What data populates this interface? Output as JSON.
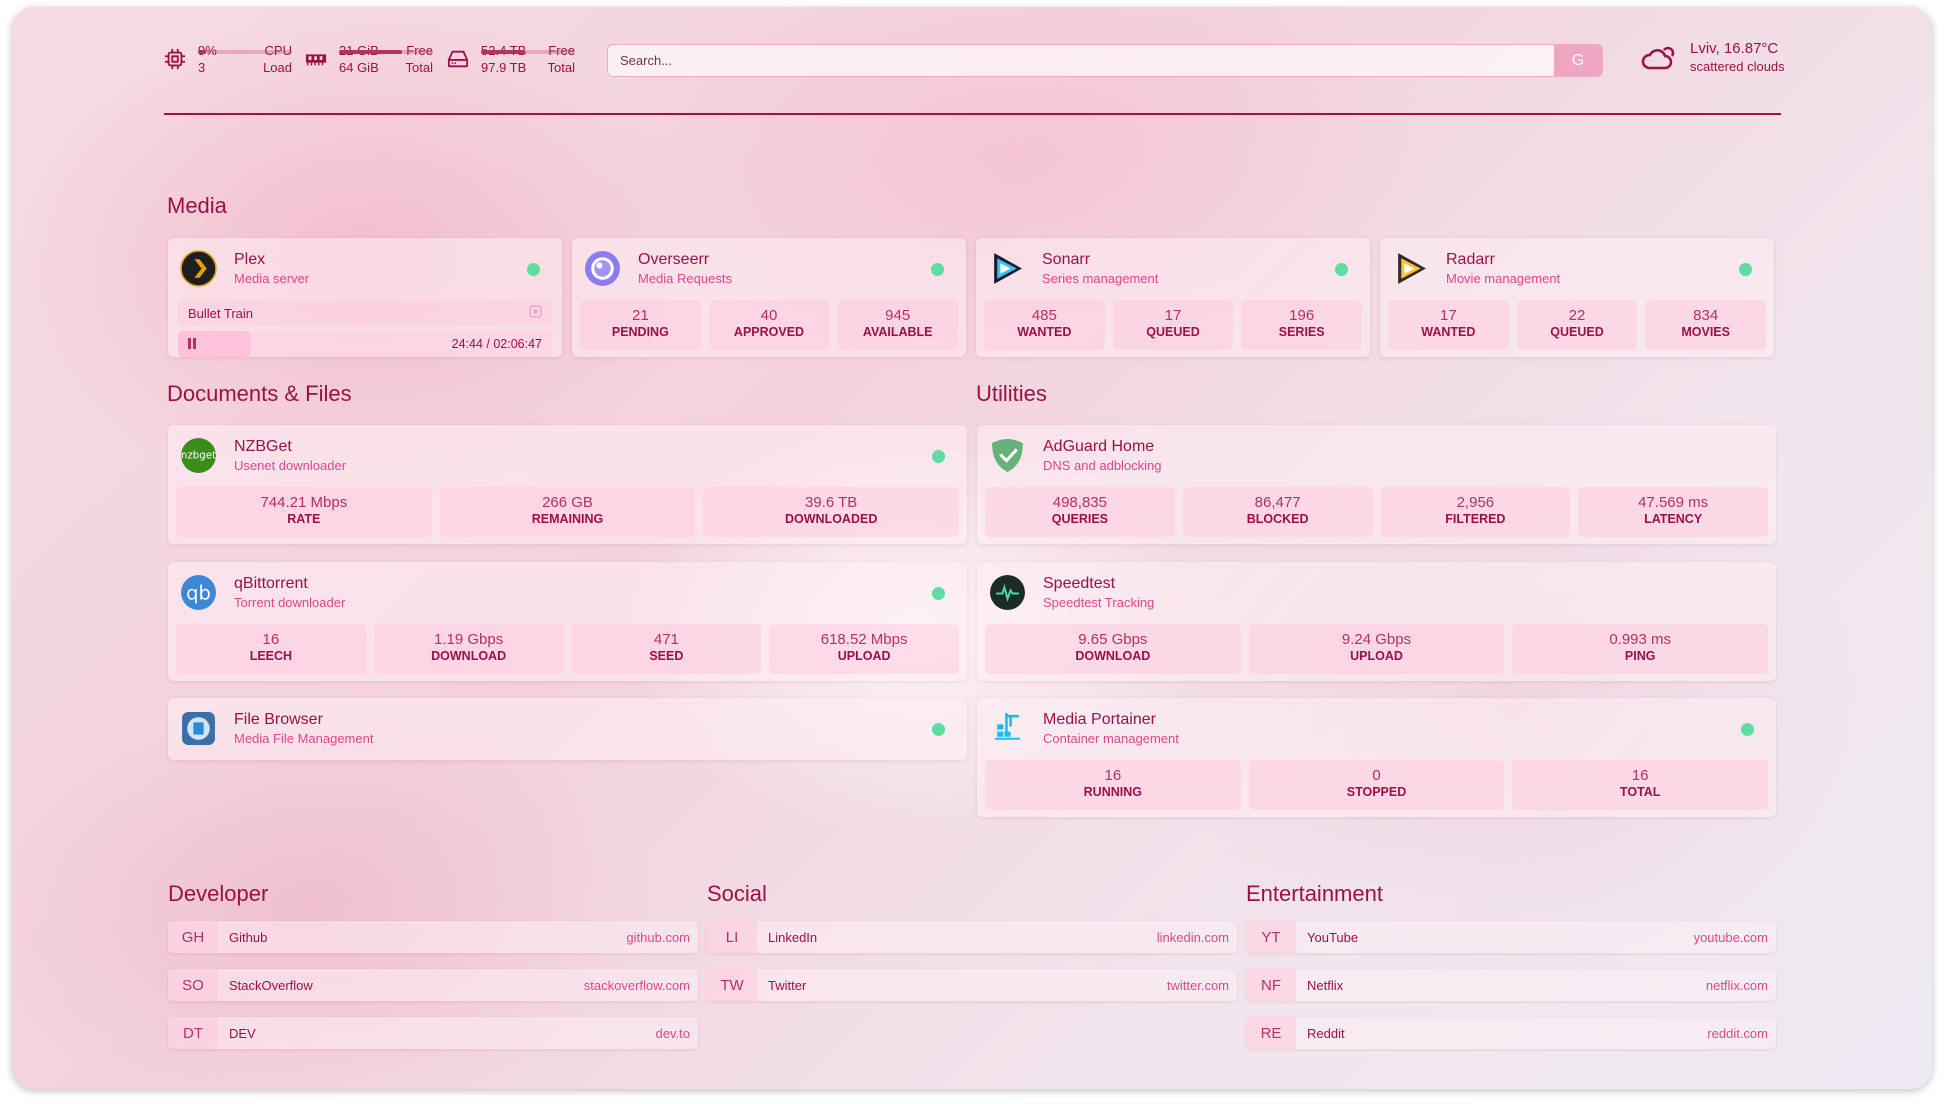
{
  "header": {
    "cpu": {
      "value": "9%",
      "sub": "3",
      "label1": "CPU",
      "label2": "Load",
      "usage": 0.09,
      "icon": "cpu-icon"
    },
    "memory": {
      "free": "21 GiB",
      "total": "64 GiB",
      "label1": "Free",
      "label2": "Total",
      "usage": 0.67,
      "icon": "memory-icon"
    },
    "disk": {
      "free": "52.4 TB",
      "total": "97.9 TB",
      "label1": "Free",
      "label2": "Total",
      "usage": 0.46,
      "icon": "disk-icon"
    },
    "search": {
      "placeholder": "Search...",
      "button": "G"
    },
    "weather": {
      "location_temp": "Lviv, 16.87°C",
      "condition": "scattered clouds",
      "icon": "cloud-sun-icon"
    }
  },
  "colors": {
    "text": "#9b1146",
    "accent": "#e0468a",
    "status_online": "#5fdca0"
  },
  "sections": {
    "media": {
      "title": "Media",
      "services": [
        {
          "name": "Plex",
          "desc": "Media server",
          "icon": "plex-icon",
          "status": "online",
          "now_playing": {
            "title": "Bullet Train",
            "time": "24:44 / 02:06:47",
            "progress": 0.195
          }
        },
        {
          "name": "Overseerr",
          "desc": "Media Requests",
          "icon": "overseerr-icon",
          "status": "online",
          "stats": [
            {
              "value": "21",
              "label": "PENDING"
            },
            {
              "value": "40",
              "label": "APPROVED"
            },
            {
              "value": "945",
              "label": "AVAILABLE"
            }
          ]
        },
        {
          "name": "Sonarr",
          "desc": "Series management",
          "icon": "sonarr-icon",
          "status": "online",
          "stats": [
            {
              "value": "485",
              "label": "WANTED"
            },
            {
              "value": "17",
              "label": "QUEUED"
            },
            {
              "value": "196",
              "label": "SERIES"
            }
          ]
        },
        {
          "name": "Radarr",
          "desc": "Movie management",
          "icon": "radarr-icon",
          "status": "online",
          "stats": [
            {
              "value": "17",
              "label": "WANTED"
            },
            {
              "value": "22",
              "label": "QUEUED"
            },
            {
              "value": "834",
              "label": "MOVIES"
            }
          ]
        }
      ]
    },
    "documents": {
      "title": "Documents & Files",
      "services": [
        {
          "name": "NZBGet",
          "desc": "Usenet downloader",
          "icon": "nzbget-icon",
          "status": "online",
          "stats": [
            {
              "value": "744.21 Mbps",
              "label": "RATE"
            },
            {
              "value": "266 GB",
              "label": "REMAINING"
            },
            {
              "value": "39.6 TB",
              "label": "DOWNLOADED"
            }
          ]
        },
        {
          "name": "qBittorrent",
          "desc": "Torrent downloader",
          "icon": "qbittorrent-icon",
          "status": "online",
          "stats": [
            {
              "value": "16",
              "label": "LEECH"
            },
            {
              "value": "1.19 Gbps",
              "label": "DOWNLOAD"
            },
            {
              "value": "471",
              "label": "SEED"
            },
            {
              "value": "618.52 Mbps",
              "label": "UPLOAD"
            }
          ]
        },
        {
          "name": "File Browser",
          "desc": "Media File Management",
          "icon": "filebrowser-icon",
          "status": "online"
        }
      ]
    },
    "utilities": {
      "title": "Utilities",
      "services": [
        {
          "name": "AdGuard Home",
          "desc": "DNS and adblocking",
          "icon": "adguard-icon",
          "stats": [
            {
              "value": "498,835",
              "label": "QUERIES"
            },
            {
              "value": "86,477",
              "label": "BLOCKED"
            },
            {
              "value": "2,956",
              "label": "FILTERED"
            },
            {
              "value": "47.569 ms",
              "label": "LATENCY"
            }
          ]
        },
        {
          "name": "Speedtest",
          "desc": "Speedtest Tracking",
          "icon": "speedtest-icon",
          "stats": [
            {
              "value": "9.65 Gbps",
              "label": "DOWNLOAD"
            },
            {
              "value": "9.24 Gbps",
              "label": "UPLOAD"
            },
            {
              "value": "0.993 ms",
              "label": "PING"
            }
          ]
        },
        {
          "name": "Media Portainer",
          "desc": "Container management",
          "icon": "portainer-icon",
          "status": "online",
          "stats": [
            {
              "value": "16",
              "label": "RUNNING"
            },
            {
              "value": "0",
              "label": "STOPPED"
            },
            {
              "value": "16",
              "label": "TOTAL"
            }
          ]
        }
      ]
    }
  },
  "bookmarks": [
    {
      "title": "Developer",
      "items": [
        {
          "abbr": "GH",
          "name": "Github",
          "url": "github.com"
        },
        {
          "abbr": "SO",
          "name": "StackOverflow",
          "url": "stackoverflow.com"
        },
        {
          "abbr": "DT",
          "name": "DEV",
          "url": "dev.to"
        }
      ]
    },
    {
      "title": "Social",
      "items": [
        {
          "abbr": "LI",
          "name": "LinkedIn",
          "url": "linkedin.com"
        },
        {
          "abbr": "TW",
          "name": "Twitter",
          "url": "twitter.com"
        }
      ]
    },
    {
      "title": "Entertainment",
      "items": [
        {
          "abbr": "YT",
          "name": "YouTube",
          "url": "youtube.com"
        },
        {
          "abbr": "NF",
          "name": "Netflix",
          "url": "netflix.com"
        },
        {
          "abbr": "RE",
          "name": "Reddit",
          "url": "reddit.com"
        }
      ]
    }
  ]
}
